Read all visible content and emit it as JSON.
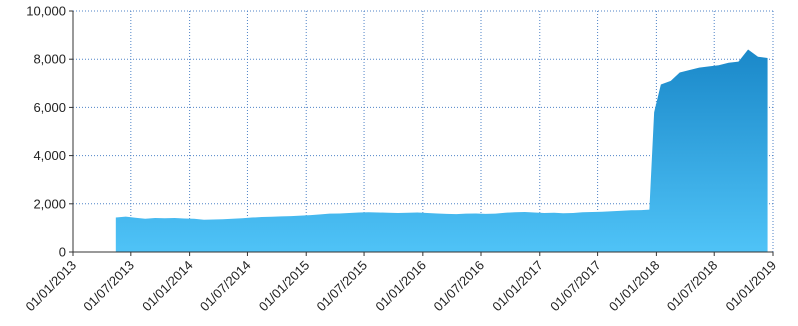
{
  "chart_data": {
    "type": "area",
    "title": "",
    "xlabel": "",
    "ylabel": "",
    "ylim": [
      0,
      10000
    ],
    "y_ticks": [
      "0",
      "2,000",
      "4,000",
      "6,000",
      "8,000",
      "10,000"
    ],
    "y_tick_values": [
      0,
      2000,
      4000,
      6000,
      8000,
      10000
    ],
    "x_ticks": [
      "01/01/2013",
      "01/07/2013",
      "01/01/2014",
      "01/07/2014",
      "01/01/2015",
      "01/07/2015",
      "01/01/2016",
      "01/07/2016",
      "01/01/2017",
      "01/07/2017",
      "01/01/2018",
      "01/07/2018",
      "01/01/2019"
    ],
    "x_tick_values": [
      "2013-01-01",
      "2013-07-01",
      "2014-01-01",
      "2014-07-01",
      "2015-01-01",
      "2015-07-01",
      "2016-01-01",
      "2016-07-01",
      "2017-01-01",
      "2017-07-01",
      "2018-01-01",
      "2018-07-01",
      "2019-01-01"
    ],
    "xlim": [
      "2013-01-01",
      "2019-01-01"
    ],
    "grid": true,
    "colors": {
      "top": "#1a88c9",
      "bottom": "#4fc3f7",
      "grid": "#4f83c7"
    },
    "series": [
      {
        "x": [
          "2013-05-15",
          "2013-06-15",
          "2013-07-15",
          "2013-08-15",
          "2013-09-15",
          "2013-10-15",
          "2013-11-15",
          "2013-12-15",
          "2014-01-15",
          "2014-02-15",
          "2014-03-15",
          "2014-04-15",
          "2014-05-15",
          "2014-06-15",
          "2014-07-15",
          "2014-08-15",
          "2014-09-15",
          "2014-10-15",
          "2014-11-15",
          "2014-12-15",
          "2015-01-15",
          "2015-02-15",
          "2015-03-15",
          "2015-04-15",
          "2015-05-15",
          "2015-06-15",
          "2015-07-15",
          "2015-08-15",
          "2015-09-15",
          "2015-10-15",
          "2015-11-15",
          "2015-12-15",
          "2016-01-15",
          "2016-02-15",
          "2016-03-15",
          "2016-04-15",
          "2016-05-15",
          "2016-06-15",
          "2016-07-15",
          "2016-08-15",
          "2016-09-15",
          "2016-10-15",
          "2016-11-15",
          "2016-12-15",
          "2017-01-15",
          "2017-02-15",
          "2017-03-15",
          "2017-04-15",
          "2017-05-15",
          "2017-06-15",
          "2017-07-15",
          "2017-08-15",
          "2017-09-15",
          "2017-10-15",
          "2017-11-15",
          "2017-12-10",
          "2017-12-25",
          "2018-01-15",
          "2018-02-15",
          "2018-03-15",
          "2018-04-15",
          "2018-05-15",
          "2018-06-15",
          "2018-07-15",
          "2018-08-15",
          "2018-09-15",
          "2018-10-15",
          "2018-11-15",
          "2018-12-15"
        ],
        "values": [
          1430,
          1470,
          1420,
          1380,
          1410,
          1400,
          1410,
          1390,
          1380,
          1340,
          1350,
          1360,
          1380,
          1400,
          1430,
          1450,
          1460,
          1480,
          1490,
          1510,
          1530,
          1560,
          1590,
          1600,
          1620,
          1640,
          1650,
          1640,
          1630,
          1620,
          1630,
          1640,
          1620,
          1600,
          1580,
          1570,
          1590,
          1600,
          1580,
          1590,
          1630,
          1650,
          1660,
          1640,
          1620,
          1630,
          1610,
          1620,
          1650,
          1660,
          1670,
          1690,
          1710,
          1730,
          1740,
          1760,
          5800,
          6950,
          7100,
          7450,
          7550,
          7650,
          7700,
          7750,
          7850,
          7900,
          8400,
          8100,
          8050
        ]
      }
    ]
  }
}
